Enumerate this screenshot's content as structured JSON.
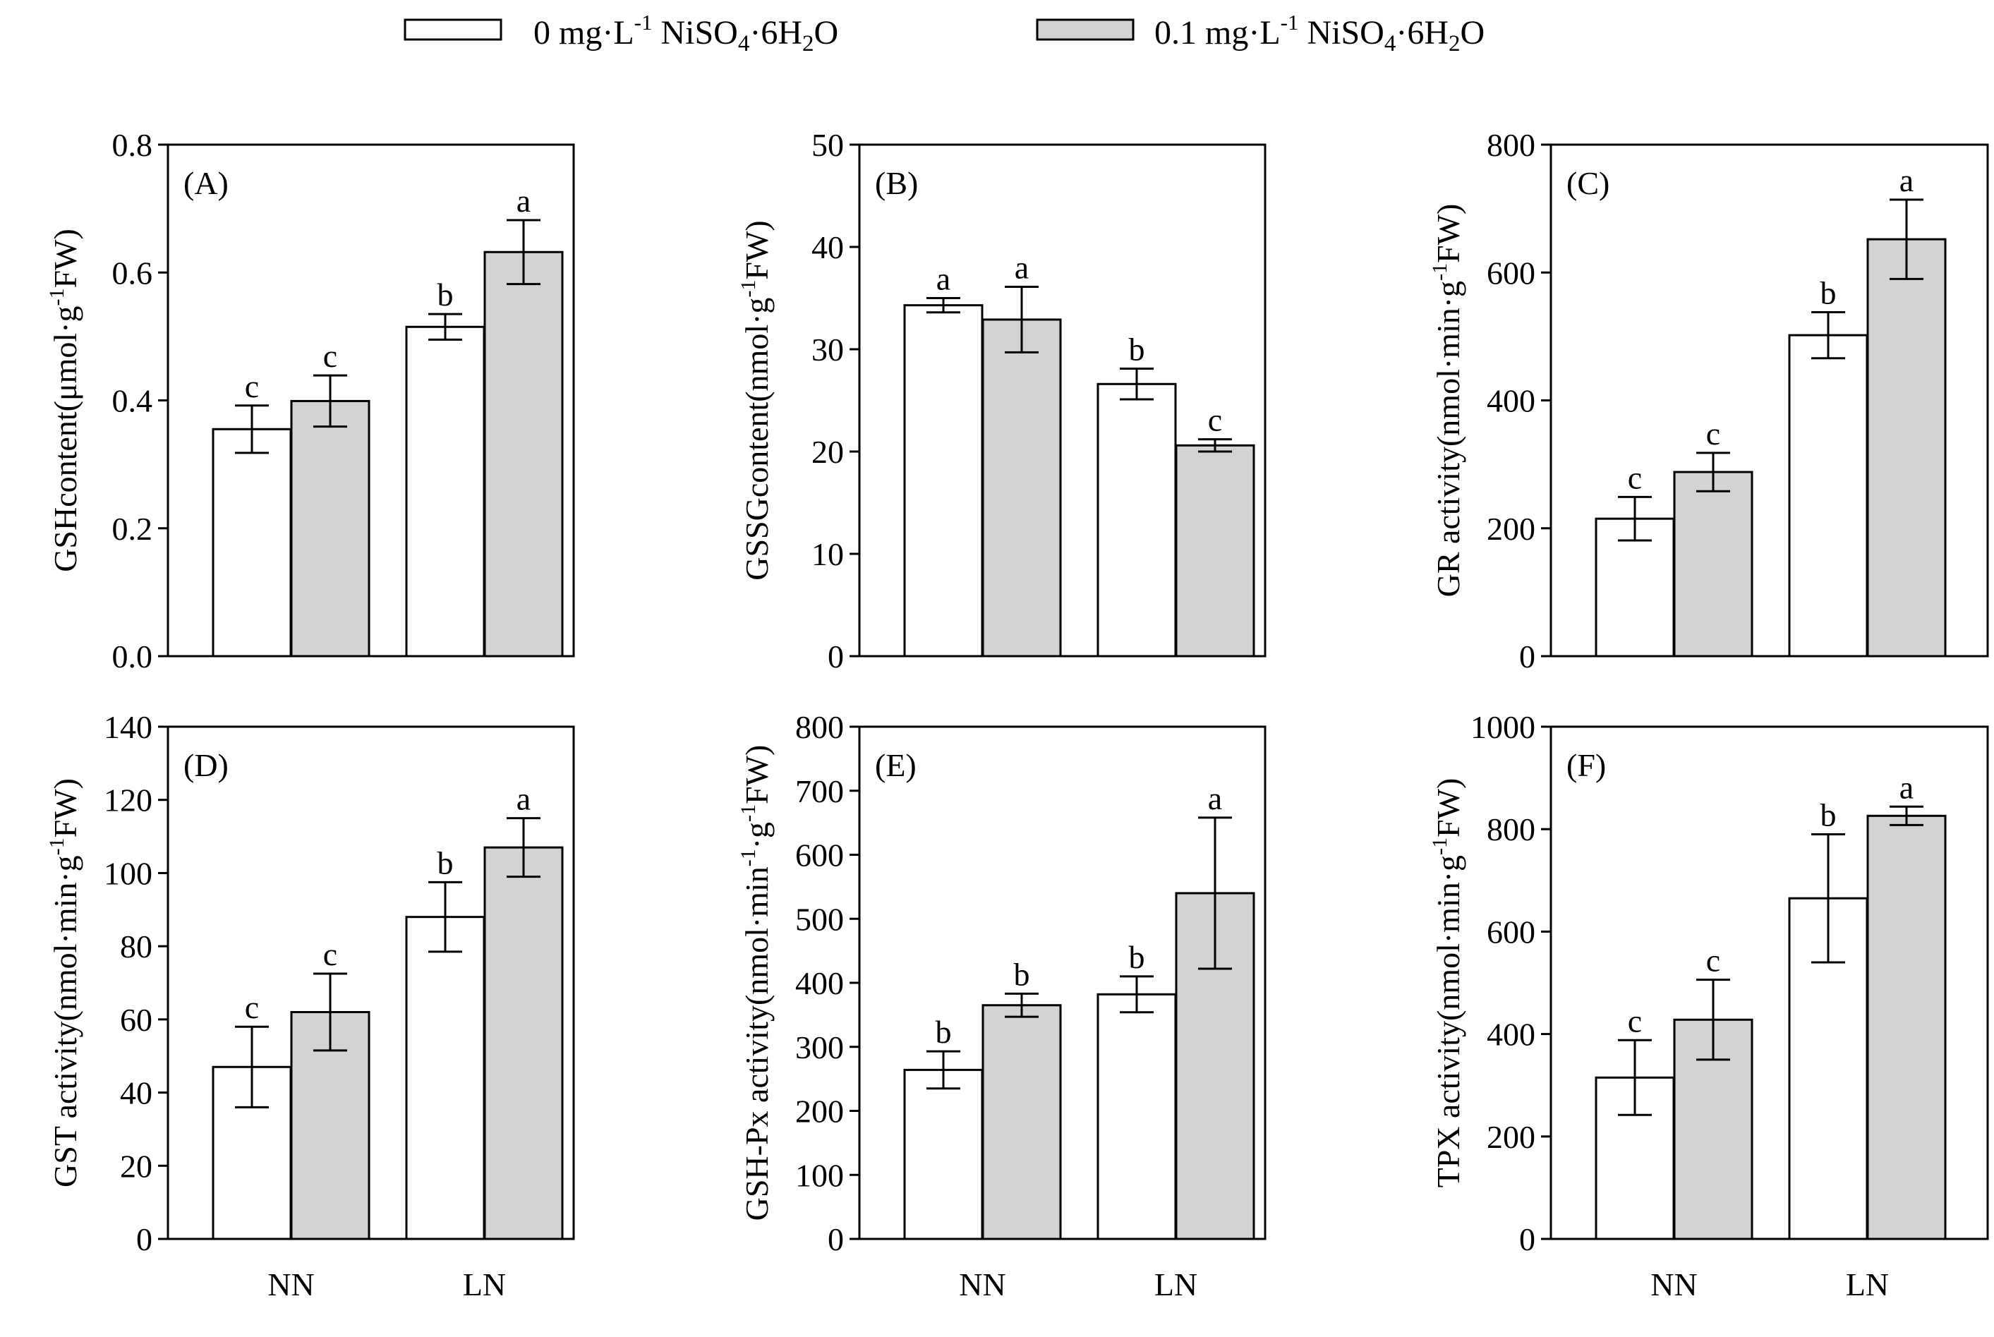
{
  "legend": {
    "series0": {
      "prefix": "0 mg·L",
      "sup": "-1",
      "compound_a": " NiSO",
      "sub4": "4",
      "compound_b": "·6H",
      "sub2": "2",
      "compound_c": "O"
    },
    "series1": {
      "prefix": "0.1 mg·L",
      "sup": "-1",
      "compound_a": " NiSO",
      "sub4": "4",
      "compound_b": "·6H",
      "sub2": "2",
      "compound_c": "O"
    }
  },
  "colors": {
    "series0": "#ffffff",
    "series1": "#d3d3d3",
    "stroke": "#000000"
  },
  "chart_data": [
    {
      "type": "bar",
      "panel": "(A)",
      "categories": [
        "NN",
        "LN"
      ],
      "series": [
        {
          "name": "0 mg·L-1 NiSO4·6H2O",
          "values": [
            0.355,
            0.515
          ],
          "errors": [
            0.037,
            0.02
          ],
          "letters": [
            "c",
            "b"
          ]
        },
        {
          "name": "0.1 mg·L-1 NiSO4·6H2O",
          "values": [
            0.399,
            0.632
          ],
          "errors": [
            0.04,
            0.05
          ],
          "letters": [
            "c",
            "a"
          ]
        }
      ],
      "ylim": [
        0,
        0.8
      ],
      "yticks": [
        "0.0",
        "0.2",
        "0.4",
        "0.6",
        "0.8"
      ],
      "ylabel": {
        "main": "GSHcontent(μmol·g",
        "sup": "-1",
        "tail": "FW)"
      }
    },
    {
      "type": "bar",
      "panel": "(B)",
      "categories": [
        "NN",
        "LN"
      ],
      "series": [
        {
          "name": "0 mg·L-1 NiSO4·6H2O",
          "values": [
            34.3,
            26.6
          ],
          "errors": [
            0.7,
            1.5
          ],
          "letters": [
            "a",
            "b"
          ]
        },
        {
          "name": "0.1 mg·L-1 NiSO4·6H2O",
          "values": [
            32.9,
            20.6
          ],
          "errors": [
            3.2,
            0.6
          ],
          "letters": [
            "a",
            "c"
          ]
        }
      ],
      "ylim": [
        0,
        50
      ],
      "yticks": [
        "0",
        "10",
        "20",
        "30",
        "40",
        "50"
      ],
      "ylabel": {
        "main": "GSSGcontent(nmol·g",
        "sup": "-1",
        "tail": "FW)"
      }
    },
    {
      "type": "bar",
      "panel": "(C)",
      "categories": [
        "NN",
        "LN"
      ],
      "series": [
        {
          "name": "0 mg·L-1 NiSO4·6H2O",
          "values": [
            215,
            502
          ],
          "errors": [
            34,
            36
          ],
          "letters": [
            "c",
            "b"
          ]
        },
        {
          "name": "0.1 mg·L-1 NiSO4·6H2O",
          "values": [
            288,
            652
          ],
          "errors": [
            30,
            62
          ],
          "letters": [
            "c",
            "a"
          ]
        }
      ],
      "ylim": [
        0,
        800
      ],
      "yticks": [
        "0",
        "200",
        "400",
        "600",
        "800"
      ],
      "ylabel": {
        "main": "GR activity(nmol·min·g",
        "sup": "-1",
        "tail": "FW)"
      }
    },
    {
      "type": "bar",
      "panel": "(D)",
      "categories": [
        "NN",
        "LN"
      ],
      "series": [
        {
          "name": "0 mg·L-1 NiSO4·6H2O",
          "values": [
            47,
            88
          ],
          "errors": [
            11,
            9.5
          ],
          "letters": [
            "c",
            "b"
          ]
        },
        {
          "name": "0.1 mg·L-1 NiSO4·6H2O",
          "values": [
            62,
            107
          ],
          "errors": [
            10.5,
            8
          ],
          "letters": [
            "c",
            "a"
          ]
        }
      ],
      "ylim": [
        0,
        140
      ],
      "yticks": [
        "0",
        "20",
        "40",
        "60",
        "80",
        "100",
        "120",
        "140"
      ],
      "ylabel": {
        "main": "GST activity(nmol·min·g",
        "sup": "-1",
        "tail": "FW)"
      }
    },
    {
      "type": "bar",
      "panel": "(E)",
      "categories": [
        "NN",
        "LN"
      ],
      "series": [
        {
          "name": "0 mg·L-1 NiSO4·6H2O",
          "values": [
            264,
            382
          ],
          "errors": [
            29,
            28
          ],
          "letters": [
            "b",
            "b"
          ]
        },
        {
          "name": "0.1 mg·L-1 NiSO4·6H2O",
          "values": [
            365,
            540
          ],
          "errors": [
            18,
            118
          ],
          "letters": [
            "b",
            "a"
          ]
        }
      ],
      "ylim": [
        0,
        800
      ],
      "yticks": [
        "0",
        "100",
        "200",
        "300",
        "400",
        "500",
        "600",
        "700",
        "800"
      ],
      "ylabel": {
        "main": "GSH-Px activity(nmol·min",
        "sup1": "-1",
        "mid": "·g",
        "sup": "-1",
        "tail": "FW)"
      }
    },
    {
      "type": "bar",
      "panel": "(F)",
      "categories": [
        "NN",
        "LN"
      ],
      "series": [
        {
          "name": "0 mg·L-1 NiSO4·6H2O",
          "values": [
            315,
            665
          ],
          "errors": [
            73,
            125
          ],
          "letters": [
            "c",
            "b"
          ]
        },
        {
          "name": "0.1 mg·L-1 NiSO4·6H2O",
          "values": [
            428,
            826
          ],
          "errors": [
            78,
            18
          ],
          "letters": [
            "c",
            "a"
          ]
        }
      ],
      "ylim": [
        0,
        1000
      ],
      "yticks": [
        "0",
        "200",
        "400",
        "600",
        "800",
        "1000"
      ],
      "ylabel": {
        "main": "TPX activity(nmol·min·g",
        "sup": "-1",
        "tail": "FW)"
      }
    }
  ]
}
